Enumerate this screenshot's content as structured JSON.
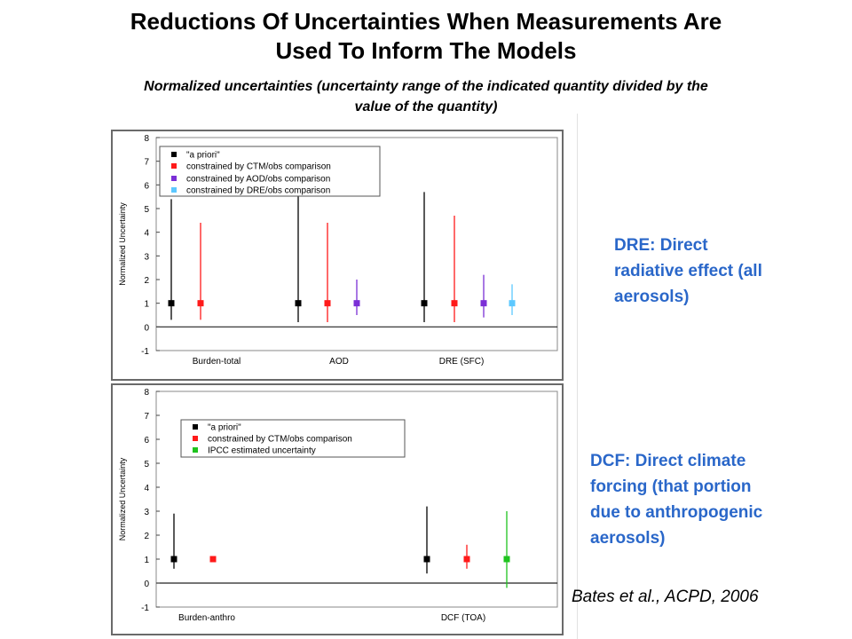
{
  "header": {
    "title_line1": "Reductions Of Uncertainties When Measurements Are",
    "title_line2": "Used To Inform The Models",
    "subtitle_line1": "Normalized uncertainties (uncertainty range of the indicated quantity divided by the",
    "subtitle_line2": "value of the quantity)"
  },
  "colors": {
    "a_priori": "#000000",
    "ctm": "#ff1a1a",
    "aod": "#7b2fd6",
    "dre": "#5cc8ff",
    "ipcc": "#1ec31e",
    "note_text": "#2a67c9"
  },
  "chart_data": [
    {
      "type": "scatter",
      "ylabel": "Normalized Uncertainty",
      "ylim": [
        -1,
        8
      ],
      "yticks": [
        "8",
        "7",
        "6",
        "5",
        "4",
        "3",
        "2",
        "1",
        "0",
        "-1"
      ],
      "grid": false,
      "legend_position": "top-left",
      "categories": [
        "Burden-total",
        "AOD",
        "DRE (SFC)"
      ],
      "series": [
        {
          "name": "\"a priori\"",
          "color_key": "a_priori",
          "points": [
            {
              "category": "Burden-total",
              "value": 1,
              "low": 0.3,
              "high": 5.4
            },
            {
              "category": "AOD",
              "value": 1,
              "low": 0.2,
              "high": 5.6
            },
            {
              "category": "DRE (SFC)",
              "value": 1,
              "low": 0.2,
              "high": 5.7
            }
          ]
        },
        {
          "name": "constrained by CTM/obs comparison",
          "color_key": "ctm",
          "points": [
            {
              "category": "Burden-total",
              "value": 1,
              "low": 0.3,
              "high": 4.4
            },
            {
              "category": "AOD",
              "value": 1,
              "low": 0.2,
              "high": 4.4
            },
            {
              "category": "DRE (SFC)",
              "value": 1,
              "low": 0.2,
              "high": 4.7
            }
          ]
        },
        {
          "name": "constrained by AOD/obs comparison",
          "color_key": "aod",
          "points": [
            {
              "category": "AOD",
              "value": 1,
              "low": 0.5,
              "high": 2.0
            },
            {
              "category": "DRE (SFC)",
              "value": 1,
              "low": 0.4,
              "high": 2.2
            }
          ]
        },
        {
          "name": "constrained by DRE/obs comparison",
          "color_key": "dre",
          "points": [
            {
              "category": "DRE (SFC)",
              "value": 1,
              "low": 0.5,
              "high": 1.8
            }
          ]
        }
      ]
    },
    {
      "type": "scatter",
      "ylabel": "Normalized Uncertainty",
      "ylim": [
        -1,
        8
      ],
      "yticks": [
        "8",
        "7",
        "6",
        "5",
        "4",
        "3",
        "2",
        "1",
        "0",
        "-1"
      ],
      "grid": false,
      "legend_position": "top-left",
      "categories": [
        "Burden-anthro",
        "DCF (TOA)"
      ],
      "series": [
        {
          "name": "\"a priori\"",
          "color_key": "a_priori",
          "points": [
            {
              "category": "Burden-anthro",
              "value": 1,
              "low": 0.6,
              "high": 2.9
            },
            {
              "category": "DCF (TOA)",
              "value": 1,
              "low": 0.4,
              "high": 3.2
            }
          ]
        },
        {
          "name": "constrained by CTM/obs comparison",
          "color_key": "ctm",
          "points": [
            {
              "category": "Burden-anthro",
              "value": 1,
              "low": 0.95,
              "high": 1.05
            },
            {
              "category": "DCF (TOA)",
              "value": 1,
              "low": 0.6,
              "high": 1.6
            }
          ]
        },
        {
          "name": "IPCC estimated uncertainty",
          "color_key": "ipcc",
          "points": [
            {
              "category": "DCF (TOA)",
              "value": 1,
              "low": -0.2,
              "high": 3.0
            }
          ]
        }
      ]
    }
  ],
  "notes": {
    "dre_line1": "DRE: Direct",
    "dre_line2": "radiative effect (all",
    "dre_line3": "aerosols)",
    "dcf_line1": "DCF: Direct climate",
    "dcf_line2": "forcing (that portion",
    "dcf_line3": "due to anthropogenic",
    "dcf_line4": "aerosols)",
    "citation": "Bates et al., ACPD,  2006"
  }
}
